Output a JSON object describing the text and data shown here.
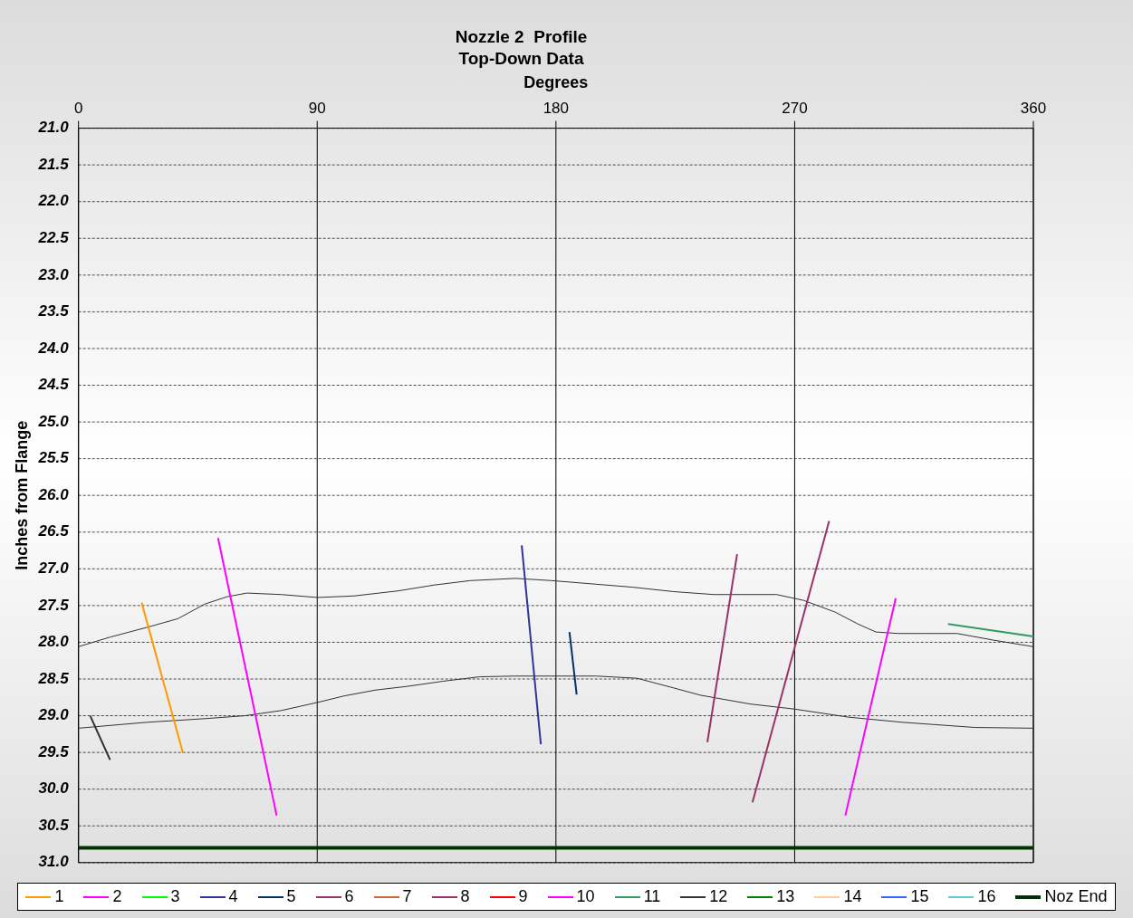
{
  "chart_data": {
    "type": "line",
    "title": "Nozzle 2  Profile",
    "subtitle": "Top-Down Data",
    "xlabel": "Degrees",
    "ylabel": "Inches from Flange",
    "xlim": [
      0,
      360
    ],
    "xticks": [
      0,
      90,
      180,
      270,
      360
    ],
    "ylim": [
      31,
      21
    ],
    "yticks": [
      {
        "value": 21,
        "label": "21.0"
      },
      {
        "value": 21.5,
        "label": "21.5"
      },
      {
        "value": 22,
        "label": "22.0"
      },
      {
        "value": 22.5,
        "label": "22.5"
      },
      {
        "value": 23,
        "label": "23.0"
      },
      {
        "value": 23.5,
        "label": "23.5"
      },
      {
        "value": 24,
        "label": "24.0"
      },
      {
        "value": 24.5,
        "label": "24.5"
      },
      {
        "value": 25,
        "label": "25.0"
      },
      {
        "value": 25.5,
        "label": "25.5"
      },
      {
        "value": 26,
        "label": "26.0"
      },
      {
        "value": 26.5,
        "label": "26.5"
      },
      {
        "value": 27,
        "label": "27.0"
      },
      {
        "value": 27.5,
        "label": "27.5"
      },
      {
        "value": 28,
        "label": "28.0"
      },
      {
        "value": 28.5,
        "label": "28.5"
      },
      {
        "value": 29,
        "label": "29.0"
      },
      {
        "value": 29.5,
        "label": "29.5"
      },
      {
        "value": 30,
        "label": "30.0"
      },
      {
        "value": 30.5,
        "label": "30.5"
      },
      {
        "value": 31,
        "label": "31.0"
      }
    ],
    "grid": true,
    "legend": "bottom",
    "marker": "none",
    "series": [
      {
        "name": "1",
        "color": "#ff9900",
        "x": [
          23.8,
          39.4
        ],
        "values": [
          27.46,
          29.51
        ]
      },
      {
        "name": "2",
        "color": "#ff00ff",
        "x": [
          52.6,
          74.7
        ],
        "values": [
          26.58,
          30.36
        ]
      },
      {
        "name": "3",
        "color": "#00ff00"
      },
      {
        "name": "4",
        "color": "#333399",
        "x": [
          167.1,
          174.3
        ],
        "values": [
          26.68,
          29.39
        ]
      },
      {
        "name": "5",
        "color": "#003366",
        "x": [
          185.1,
          187.8
        ],
        "values": [
          27.86,
          28.71
        ]
      },
      {
        "name": "6",
        "color": "#993366",
        "x": [
          248.3,
          237.1
        ],
        "values": [
          26.8,
          29.36
        ]
      },
      {
        "name": "7",
        "color": "#cc6633"
      },
      {
        "name": "8",
        "color": "#993366",
        "x": [
          283,
          254.1
        ],
        "values": [
          26.35,
          30.18
        ]
      },
      {
        "name": "9",
        "color": "#ff0000"
      },
      {
        "name": "10",
        "color": "#ff00ff",
        "x": [
          308.1,
          289.1
        ],
        "values": [
          27.4,
          30.36
        ]
      },
      {
        "name": "11",
        "color": "#339966",
        "x": [
          327.8,
          360
        ],
        "values": [
          27.75,
          27.92
        ]
      },
      {
        "name": "12",
        "color": "#333333",
        "x": [
          4.4,
          11.9
        ],
        "values": [
          29.0,
          29.6
        ]
      },
      {
        "name": "13",
        "color": "#008000"
      },
      {
        "name": "14",
        "color": "#ffcc99"
      },
      {
        "name": "15",
        "color": "#3366ff"
      },
      {
        "name": "16",
        "color": "#66cccc"
      },
      {
        "name": "Noz End",
        "color": "#003300",
        "x": [
          0,
          360
        ],
        "values": [
          30.8,
          30.8
        ]
      },
      {
        "color": "#333333",
        "x": [
          0,
          11.9,
          25.5,
          37.4,
          47.6,
          56,
          63.5,
          76.4,
          90,
          103.6,
          120.6,
          134.2,
          147.8,
          164.7,
          178.3,
          195.3,
          208.9,
          224.2,
          239.5,
          249.7,
          263.2,
          273.4,
          285.3,
          293.8,
          300.6,
          309.1,
          317.6,
          331.2,
          344.8,
          360
        ],
        "values": [
          28.06,
          27.93,
          27.8,
          27.68,
          27.48,
          27.38,
          27.33,
          27.35,
          27.39,
          27.37,
          27.3,
          27.22,
          27.16,
          27.13,
          27.16,
          27.21,
          27.25,
          27.31,
          27.35,
          27.35,
          27.35,
          27.43,
          27.59,
          27.75,
          27.86,
          27.88,
          27.88,
          27.88,
          27.97,
          28.06
        ]
      },
      {
        "color": "#333333",
        "x": [
          0,
          25.5,
          47.6,
          62.8,
          76.4,
          90,
          100.2,
          112.1,
          124,
          137.6,
          151.2,
          164.7,
          178.3,
          195.3,
          210.6,
          224.2,
          234.4,
          253.1,
          270,
          290.4,
          310.8,
          338,
          360
        ],
        "values": [
          29.17,
          29.09,
          29.04,
          29.0,
          28.93,
          28.82,
          28.73,
          28.65,
          28.6,
          28.53,
          28.47,
          28.46,
          28.46,
          28.46,
          28.49,
          28.62,
          28.72,
          28.84,
          28.91,
          29.02,
          29.09,
          29.16,
          29.17
        ]
      }
    ]
  }
}
